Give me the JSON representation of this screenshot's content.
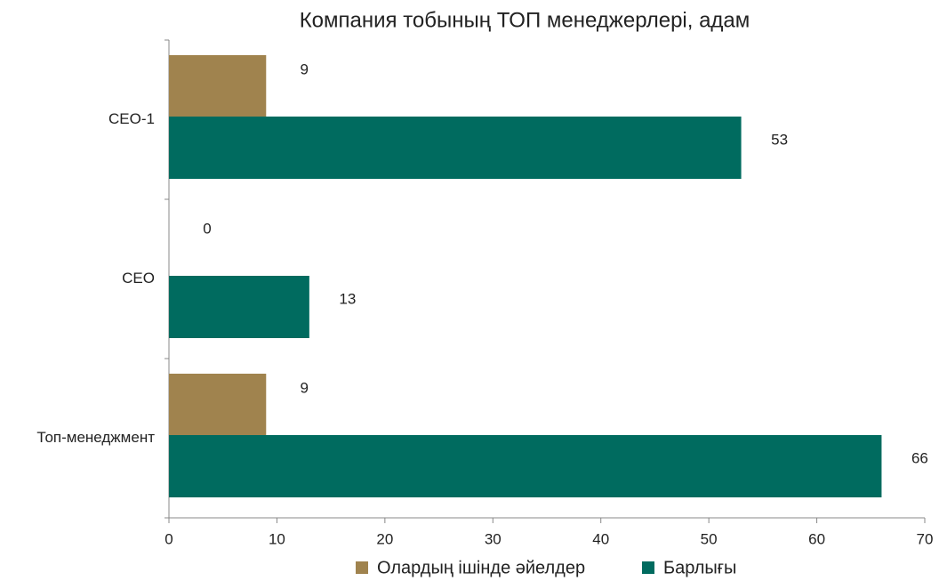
{
  "chart_data": {
    "type": "hbar",
    "title": "Компания тобының ТОП менеджерлері, адам",
    "categories": [
      "CEO-1",
      "CEO",
      "Топ-менеджмент"
    ],
    "series": [
      {
        "name": "Олардың ішінде әйелдер",
        "color": "#a0834e",
        "values": [
          9,
          0,
          9
        ]
      },
      {
        "name": "Барлығы",
        "color": "#006b5f",
        "values": [
          53,
          13,
          66
        ]
      }
    ],
    "xlim": [
      0,
      70
    ],
    "xticks": [
      0,
      10,
      20,
      30,
      40,
      50,
      60,
      70
    ],
    "legend": "bottom"
  }
}
